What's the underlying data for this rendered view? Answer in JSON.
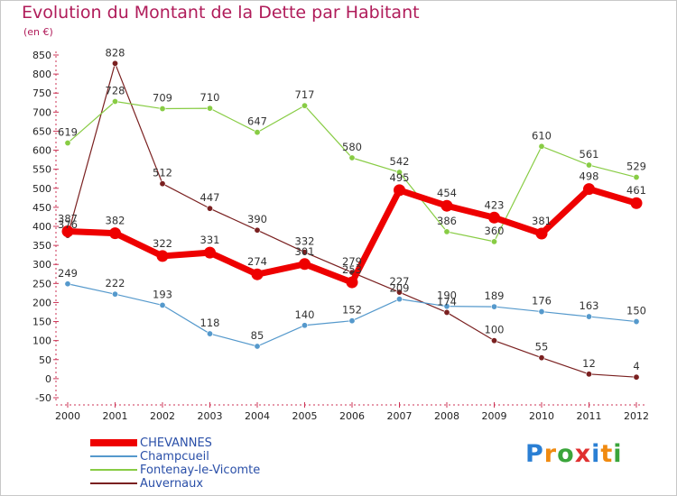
{
  "chart_data": {
    "type": "line",
    "title": "Evolution du Montant de la Dette par Habitant",
    "subtitle": "(en €)",
    "x": [
      "2000",
      "2001",
      "2002",
      "2003",
      "2004",
      "2005",
      "2006",
      "2007",
      "2008",
      "2009",
      "2010",
      "2011",
      "2012"
    ],
    "y_ticks": [
      "850",
      "800",
      "750",
      "700",
      "650",
      "600",
      "550",
      "500",
      "450",
      "400",
      "350",
      "300",
      "250",
      "200",
      "150",
      "100",
      "50",
      "0",
      "-50"
    ],
    "ylim": [
      -50,
      850
    ],
    "grid": false,
    "legend_position": "bottom-left",
    "series": [
      {
        "name": "CHEVANNES",
        "color": "#ee0000",
        "values": [
          387,
          382,
          322,
          331,
          274,
          301,
          253,
          495,
          454,
          423,
          381,
          498,
          461
        ],
        "labels": [
          "387",
          "382",
          "322",
          "331",
          "274",
          "301",
          "253",
          "495",
          "454",
          "423",
          "381",
          "498",
          "461"
        ]
      },
      {
        "name": "Champcueil",
        "color": "#5599cc",
        "values": [
          249,
          222,
          193,
          118,
          85,
          140,
          152,
          209,
          190,
          189,
          176,
          163,
          150
        ],
        "labels": [
          "249",
          "222",
          "193",
          "118",
          "85",
          "140",
          "152",
          "209",
          "190",
          "189",
          "176",
          "163",
          "150"
        ]
      },
      {
        "name": "Fontenay-le-Vicomte",
        "color": "#88cc44",
        "values": [
          619,
          728,
          709,
          710,
          647,
          717,
          580,
          542,
          386,
          360,
          610,
          561,
          529
        ],
        "labels": [
          "619",
          "728",
          "709",
          "710",
          "647",
          "717",
          "580",
          "542",
          "386",
          "360",
          "610",
          "561",
          "529"
        ]
      },
      {
        "name": "Auvernaux",
        "color": "#7a2020",
        "values": [
          376,
          828,
          512,
          447,
          390,
          332,
          279,
          227,
          174,
          100,
          55,
          12,
          4
        ],
        "labels": [
          "376",
          "828",
          "512",
          "447",
          "390",
          "332",
          "279",
          "227",
          "174",
          "100",
          "55",
          "12",
          "4"
        ]
      }
    ]
  },
  "logo": {
    "letters": [
      "P",
      "r",
      "o",
      "x",
      "i",
      "t",
      "i"
    ],
    "colors": [
      "#2a7fd4",
      "#f08a10",
      "#3aa53a",
      "#e03030",
      "#2a7fd4",
      "#f08a10",
      "#3aa53a"
    ]
  }
}
